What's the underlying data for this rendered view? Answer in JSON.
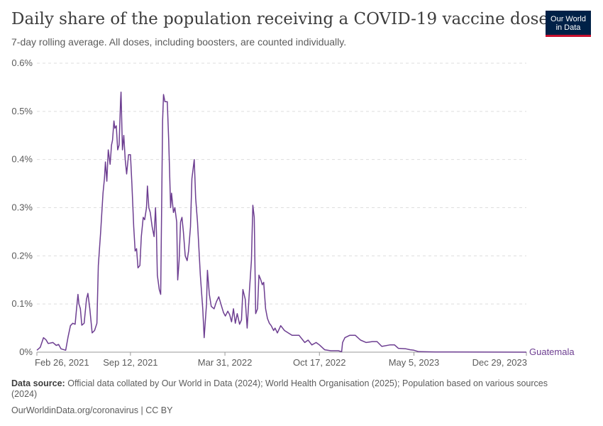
{
  "header": {
    "title": "Daily share of the population receiving a COVID-19 vaccine dose",
    "subtitle": "7-day rolling average. All doses, including boosters, are counted individually."
  },
  "logo": {
    "line1": "Our World",
    "line2": "in Data"
  },
  "footer": {
    "source_label": "Data source:",
    "source_text": "Official data collated by Our World in Data (2024); World Health Organisation (2025); Population based on various sources (2024)",
    "credit": "OurWorldinData.org/coronavirus | CC BY"
  },
  "colors": {
    "series": "#6d3e91",
    "grid": "#dddddd",
    "axis": "#999999"
  },
  "chart_data": {
    "type": "line",
    "title": "Daily share of the population receiving a COVID-19 vaccine dose",
    "subtitle": "7-day rolling average. All doses, including boosters, are counted individually.",
    "x_tick_labels": [
      "Feb 26, 2021",
      "Sep 12, 2021",
      "Mar 31, 2022",
      "Oct 17, 2022",
      "May 5, 2023",
      "Dec 29, 2023"
    ],
    "x_tick_dates": [
      "2021-02-26",
      "2021-09-12",
      "2022-03-31",
      "2022-10-17",
      "2023-05-05",
      "2023-12-29"
    ],
    "y_tick_labels": [
      "0%",
      "0.1%",
      "0.2%",
      "0.3%",
      "0.4%",
      "0.5%",
      "0.6%"
    ],
    "y_ticks": [
      0,
      0.1,
      0.2,
      0.3,
      0.4,
      0.5,
      0.6
    ],
    "ylim": [
      0,
      0.6
    ],
    "xlim": [
      "2021-02-26",
      "2023-12-29"
    ],
    "y_unit": "%",
    "grid": "horizontal dashed",
    "series": [
      {
        "name": "Guatemala",
        "points": [
          [
            "2021-02-26",
            0.004
          ],
          [
            "2021-03-05",
            0.01
          ],
          [
            "2021-03-12",
            0.03
          ],
          [
            "2021-03-17",
            0.026
          ],
          [
            "2021-03-22",
            0.018
          ],
          [
            "2021-04-01",
            0.02
          ],
          [
            "2021-04-08",
            0.014
          ],
          [
            "2021-04-13",
            0.016
          ],
          [
            "2021-04-18",
            0.007
          ],
          [
            "2021-04-28",
            0.004
          ],
          [
            "2021-05-03",
            0.032
          ],
          [
            "2021-05-08",
            0.055
          ],
          [
            "2021-05-13",
            0.06
          ],
          [
            "2021-05-18",
            0.058
          ],
          [
            "2021-05-21",
            0.09
          ],
          [
            "2021-05-24",
            0.12
          ],
          [
            "2021-05-26",
            0.1
          ],
          [
            "2021-05-29",
            0.09
          ],
          [
            "2021-06-01",
            0.056
          ],
          [
            "2021-06-06",
            0.06
          ],
          [
            "2021-06-11",
            0.11
          ],
          [
            "2021-06-14",
            0.122
          ],
          [
            "2021-06-18",
            0.09
          ],
          [
            "2021-06-23",
            0.04
          ],
          [
            "2021-06-28",
            0.045
          ],
          [
            "2021-07-03",
            0.06
          ],
          [
            "2021-07-06",
            0.18
          ],
          [
            "2021-07-11",
            0.25
          ],
          [
            "2021-07-16",
            0.33
          ],
          [
            "2021-07-19",
            0.36
          ],
          [
            "2021-07-21",
            0.395
          ],
          [
            "2021-07-24",
            0.355
          ],
          [
            "2021-07-27",
            0.42
          ],
          [
            "2021-07-31",
            0.39
          ],
          [
            "2021-08-03",
            0.43
          ],
          [
            "2021-08-05",
            0.44
          ],
          [
            "2021-08-08",
            0.48
          ],
          [
            "2021-08-10",
            0.465
          ],
          [
            "2021-08-13",
            0.47
          ],
          [
            "2021-08-16",
            0.42
          ],
          [
            "2021-08-19",
            0.43
          ],
          [
            "2021-08-22",
            0.52
          ],
          [
            "2021-08-23",
            0.54
          ],
          [
            "2021-08-26",
            0.42
          ],
          [
            "2021-08-29",
            0.45
          ],
          [
            "2021-09-01",
            0.4
          ],
          [
            "2021-09-04",
            0.37
          ],
          [
            "2021-09-08",
            0.41
          ],
          [
            "2021-09-12",
            0.41
          ],
          [
            "2021-09-15",
            0.35
          ],
          [
            "2021-09-19",
            0.26
          ],
          [
            "2021-09-22",
            0.21
          ],
          [
            "2021-09-25",
            0.215
          ],
          [
            "2021-09-28",
            0.175
          ],
          [
            "2021-10-02",
            0.18
          ],
          [
            "2021-10-05",
            0.24
          ],
          [
            "2021-10-09",
            0.28
          ],
          [
            "2021-10-12",
            0.275
          ],
          [
            "2021-10-16",
            0.3
          ],
          [
            "2021-10-18",
            0.345
          ],
          [
            "2021-10-21",
            0.3
          ],
          [
            "2021-10-24",
            0.29
          ],
          [
            "2021-10-28",
            0.26
          ],
          [
            "2021-11-01",
            0.24
          ],
          [
            "2021-11-04",
            0.3
          ],
          [
            "2021-11-06",
            0.25
          ],
          [
            "2021-11-08",
            0.16
          ],
          [
            "2021-11-12",
            0.13
          ],
          [
            "2021-11-15",
            0.12
          ],
          [
            "2021-11-19",
            0.48
          ],
          [
            "2021-11-21",
            0.535
          ],
          [
            "2021-11-24",
            0.52
          ],
          [
            "2021-11-29",
            0.52
          ],
          [
            "2021-12-02",
            0.44
          ],
          [
            "2021-12-06",
            0.3
          ],
          [
            "2021-12-08",
            0.33
          ],
          [
            "2021-12-12",
            0.29
          ],
          [
            "2021-12-15",
            0.3
          ],
          [
            "2021-12-19",
            0.27
          ],
          [
            "2021-12-21",
            0.15
          ],
          [
            "2021-12-24",
            0.19
          ],
          [
            "2021-12-27",
            0.27
          ],
          [
            "2021-12-30",
            0.28
          ],
          [
            "2022-01-02",
            0.25
          ],
          [
            "2022-01-06",
            0.2
          ],
          [
            "2022-01-10",
            0.19
          ],
          [
            "2022-01-13",
            0.21
          ],
          [
            "2022-01-17",
            0.26
          ],
          [
            "2022-01-20",
            0.36
          ],
          [
            "2022-01-25",
            0.4
          ],
          [
            "2022-01-28",
            0.32
          ],
          [
            "2022-02-01",
            0.27
          ],
          [
            "2022-02-07",
            0.16
          ],
          [
            "2022-02-12",
            0.09
          ],
          [
            "2022-02-15",
            0.03
          ],
          [
            "2022-02-20",
            0.1
          ],
          [
            "2022-02-22",
            0.17
          ],
          [
            "2022-02-26",
            0.12
          ],
          [
            "2022-03-02",
            0.095
          ],
          [
            "2022-03-08",
            0.09
          ],
          [
            "2022-03-13",
            0.105
          ],
          [
            "2022-03-18",
            0.115
          ],
          [
            "2022-03-24",
            0.095
          ],
          [
            "2022-03-28",
            0.082
          ],
          [
            "2022-04-01",
            0.075
          ],
          [
            "2022-04-06",
            0.085
          ],
          [
            "2022-04-10",
            0.078
          ],
          [
            "2022-04-14",
            0.063
          ],
          [
            "2022-04-18",
            0.09
          ],
          [
            "2022-04-22",
            0.06
          ],
          [
            "2022-04-26",
            0.08
          ],
          [
            "2022-05-01",
            0.058
          ],
          [
            "2022-05-05",
            0.067
          ],
          [
            "2022-05-08",
            0.13
          ],
          [
            "2022-05-13",
            0.11
          ],
          [
            "2022-05-17",
            0.05
          ],
          [
            "2022-05-22",
            0.13
          ],
          [
            "2022-05-26",
            0.19
          ],
          [
            "2022-05-29",
            0.305
          ],
          [
            "2022-06-01",
            0.28
          ],
          [
            "2022-06-04",
            0.08
          ],
          [
            "2022-06-08",
            0.09
          ],
          [
            "2022-06-11",
            0.16
          ],
          [
            "2022-06-15",
            0.15
          ],
          [
            "2022-06-18",
            0.14
          ],
          [
            "2022-06-21",
            0.145
          ],
          [
            "2022-06-25",
            0.09
          ],
          [
            "2022-06-29",
            0.07
          ],
          [
            "2022-07-03",
            0.06
          ],
          [
            "2022-07-07",
            0.055
          ],
          [
            "2022-07-12",
            0.045
          ],
          [
            "2022-07-15",
            0.05
          ],
          [
            "2022-07-20",
            0.04
          ],
          [
            "2022-07-27",
            0.055
          ],
          [
            "2022-08-04",
            0.045
          ],
          [
            "2022-08-12",
            0.04
          ],
          [
            "2022-08-20",
            0.035
          ],
          [
            "2022-09-04",
            0.035
          ],
          [
            "2022-09-16",
            0.02
          ],
          [
            "2022-09-23",
            0.025
          ],
          [
            "2022-10-01",
            0.015
          ],
          [
            "2022-10-10",
            0.02
          ],
          [
            "2022-10-17",
            0.015
          ],
          [
            "2022-10-28",
            0.005
          ],
          [
            "2022-11-10",
            0.003
          ],
          [
            "2022-11-26",
            0.003
          ],
          [
            "2022-12-03",
            0.001
          ],
          [
            "2022-12-05",
            0.02
          ],
          [
            "2022-12-10",
            0.03
          ],
          [
            "2022-12-20",
            0.035
          ],
          [
            "2023-01-01",
            0.035
          ],
          [
            "2023-01-12",
            0.025
          ],
          [
            "2023-01-24",
            0.02
          ],
          [
            "2023-02-06",
            0.022
          ],
          [
            "2023-02-16",
            0.022
          ],
          [
            "2023-02-26",
            0.012
          ],
          [
            "2023-03-15",
            0.015
          ],
          [
            "2023-03-25",
            0.015
          ],
          [
            "2023-04-02",
            0.008
          ],
          [
            "2023-04-18",
            0.007
          ],
          [
            "2023-04-27",
            0.005
          ],
          [
            "2023-05-05",
            0.004
          ],
          [
            "2023-05-15",
            0.001
          ],
          [
            "2023-06-20",
            0.0005
          ],
          [
            "2023-12-29",
            0.0
          ]
        ]
      }
    ],
    "series_end_label": "Guatemala"
  }
}
